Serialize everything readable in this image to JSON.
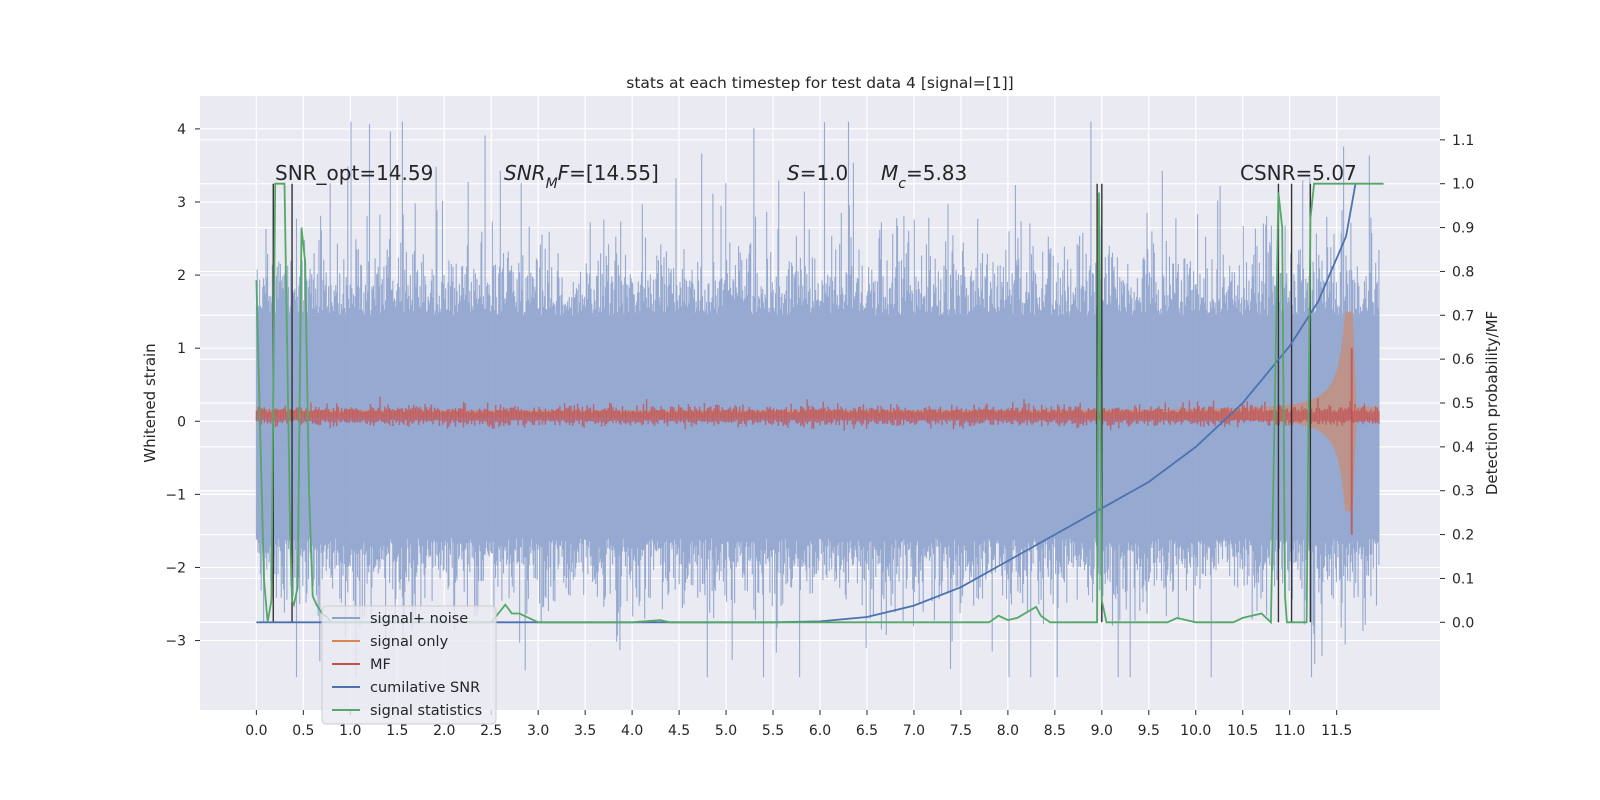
{
  "chart_data": {
    "type": "line",
    "title": "stats at each timestep for test data 4 [signal=[1]]",
    "ylabel": "Whitened strain",
    "ylabel_right": "Detection probability/MF",
    "xlim": [
      -0.6,
      12.6
    ],
    "ylim": [
      -3.95,
      4.45
    ],
    "ylim_right": [
      -0.2,
      1.2
    ],
    "xticks": [
      "0.0",
      "0.5",
      "1.0",
      "1.5",
      "2.0",
      "2.5",
      "3.0",
      "3.5",
      "4.0",
      "4.5",
      "5.0",
      "5.5",
      "6.0",
      "6.5",
      "7.0",
      "7.5",
      "8.0",
      "8.5",
      "9.0",
      "9.5",
      "10.0",
      "10.5",
      "11.0",
      "11.5"
    ],
    "yticks_left": [
      "−3",
      "−2",
      "−1",
      "0",
      "1",
      "2",
      "3",
      "4"
    ],
    "yticks_right": [
      "0.0",
      "0.1",
      "0.2",
      "0.3",
      "0.4",
      "0.5",
      "0.6",
      "0.7",
      "0.8",
      "0.9",
      "1.0",
      "1.1"
    ],
    "annotations": [
      "SNR_opt=14.59",
      "SNR_MF=[14.55]",
      "S=1.0",
      "M_c=5.83",
      "CSNR=5.07"
    ],
    "legend": {
      "placement": "lower-left",
      "entries": [
        "signal+ noise",
        "signal only",
        "MF",
        "cumilative SNR",
        "signal statistics"
      ]
    },
    "grid": true,
    "series": [
      {
        "name": "cumilative SNR",
        "axis": "right",
        "x": [
          0.0,
          1.0,
          2.0,
          3.0,
          4.0,
          5.0,
          5.5,
          6.0,
          6.5,
          7.0,
          7.5,
          8.0,
          8.5,
          9.0,
          9.5,
          10.0,
          10.5,
          11.0,
          11.3,
          11.6,
          11.7
        ],
        "values": [
          0.0,
          0.0,
          0.0,
          0.0,
          0.0,
          0.0,
          0.0,
          0.002,
          0.012,
          0.038,
          0.08,
          0.14,
          0.2,
          0.26,
          0.32,
          0.4,
          0.5,
          0.63,
          0.73,
          0.88,
          1.0
        ]
      },
      {
        "name": "signal statistics",
        "axis": "right",
        "x": [
          0.0,
          0.08,
          0.12,
          0.16,
          0.2,
          0.22,
          0.3,
          0.36,
          0.38,
          0.4,
          0.44,
          0.48,
          0.52,
          0.56,
          0.6,
          0.64,
          0.7,
          0.76,
          0.8,
          1.0,
          1.5,
          2.0,
          2.5,
          2.65,
          2.72,
          2.8,
          2.9,
          3.0,
          4.0,
          4.3,
          4.4,
          5.0,
          6.0,
          7.0,
          7.8,
          7.9,
          8.0,
          8.1,
          8.3,
          8.35,
          8.45,
          8.6,
          8.95,
          8.97,
          9.0,
          9.05,
          9.1,
          9.5,
          9.7,
          9.8,
          10.0,
          10.4,
          10.5,
          10.7,
          10.8,
          10.85,
          10.88,
          10.92,
          10.95,
          10.97,
          11.05,
          11.18,
          11.22,
          11.26,
          11.3,
          11.35,
          11.5,
          11.6,
          12.0
        ],
        "values": [
          0.78,
          0.1,
          0.0,
          0.05,
          1.0,
          1.0,
          1.0,
          0.2,
          0.05,
          0.04,
          0.08,
          0.9,
          0.82,
          0.3,
          0.06,
          0.04,
          0.02,
          0.01,
          0.0,
          0.0,
          0.0,
          0.0,
          0.0,
          0.04,
          0.02,
          0.02,
          0.01,
          0.0,
          0.0,
          0.005,
          0.0,
          0.0,
          0.0,
          0.0,
          0.0,
          0.015,
          0.005,
          0.01,
          0.035,
          0.015,
          0.0,
          0.0,
          0.0,
          0.98,
          0.05,
          0.0,
          0.0,
          0.0,
          0.0,
          0.01,
          0.0,
          0.0,
          0.01,
          0.02,
          0.0,
          0.6,
          0.98,
          0.9,
          0.06,
          0.0,
          0.0,
          0.0,
          0.92,
          1.0,
          1.0,
          1.0,
          1.0,
          1.0,
          1.0
        ]
      },
      {
        "name": "signal+ noise",
        "axis": "left",
        "description_range": "dense noise band, mostly between -1.6 and 1.5, peaks to about 4.1 and -3.5, over x 0.0 to 11.95"
      },
      {
        "name": "signal only",
        "axis": "left",
        "description_range": "chirp with amplitude growing from about 0.05 to about 1.4 near x 11.65"
      },
      {
        "name": "MF",
        "axis": "left",
        "description_range": "narrow band about 0.0 to 0.2 with a spike near x 11.65 up to about 1.0"
      }
    ]
  },
  "colors": {
    "background": "#eaeaf2",
    "grid": "#ffffff",
    "signal_noise": "#8da2cc",
    "signal_only": "#dd8452",
    "mf": "#c44e52",
    "cumulative_snr": "#4c72b0",
    "signal_statistics": "#55a868",
    "vlines": "#333333"
  }
}
